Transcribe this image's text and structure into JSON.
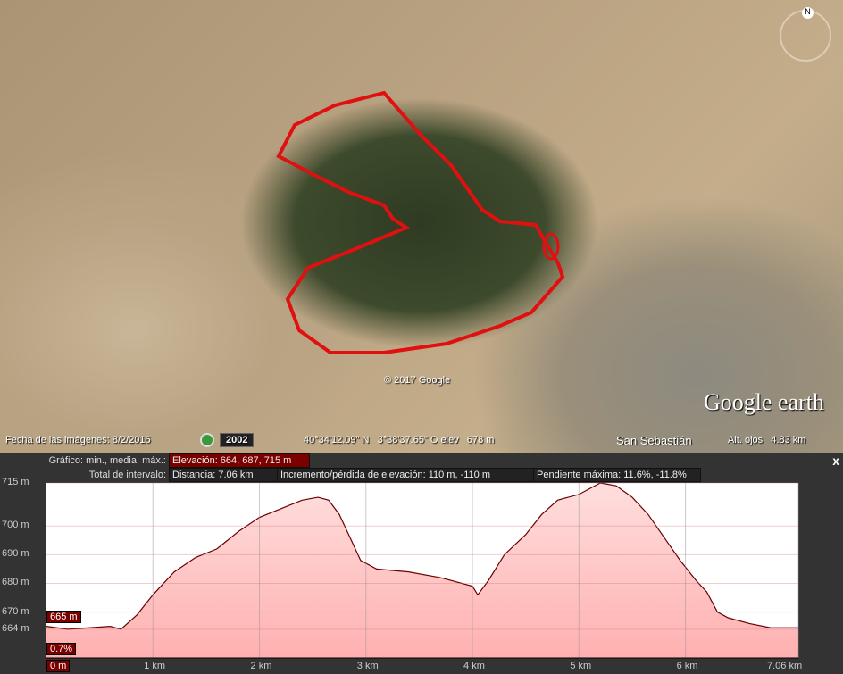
{
  "map": {
    "copyright": "© 2017 Google",
    "logo": "Google earth",
    "compass": "N",
    "place_label": "San Sebastián"
  },
  "status": {
    "imagery_date": "Fecha de las imágenes: 8/2/2016",
    "historical_year": "2002",
    "coords": "40°34'12.09\" N   3°38'37.65\" O elev   678 m",
    "eye_alt": "Alt. ojos   4.83 km"
  },
  "profile": {
    "summary_label": "Gráfico: min., media, máx.:",
    "elevation": "Elevación: 664, 687, 715 m",
    "range_label": "Total de intervalo:",
    "distance": "Distancia: 7.06 km",
    "gain_loss": "Incremento/pérdida de elevación: 110 m, -110 m",
    "max_slope": "Pendiente máxima: 11.6%, -11.8%",
    "cursor_elev": "665 m",
    "cursor_slope": "0.7%",
    "cursor_dist": "0 m",
    "close": "x"
  },
  "chart_data": {
    "type": "area",
    "xlim": [
      0,
      7.06
    ],
    "ylim": [
      654,
      715
    ],
    "y_ticks": [
      {
        "v": 715,
        "l": "715 m"
      },
      {
        "v": 700,
        "l": "700 m"
      },
      {
        "v": 690,
        "l": "690 m"
      },
      {
        "v": 680,
        "l": "680 m"
      },
      {
        "v": 670,
        "l": "670 m"
      },
      {
        "v": 664,
        "l": "664 m"
      }
    ],
    "x_ticks": [
      {
        "v": 1,
        "l": "1 km"
      },
      {
        "v": 2,
        "l": "2 km"
      },
      {
        "v": 3,
        "l": "3 km"
      },
      {
        "v": 4,
        "l": "4 km"
      },
      {
        "v": 5,
        "l": "5 km"
      },
      {
        "v": 6,
        "l": "6 km"
      },
      {
        "v": 7.06,
        "l": "7.06 km"
      }
    ],
    "points": [
      [
        0,
        665
      ],
      [
        0.2,
        664
      ],
      [
        0.4,
        664.5
      ],
      [
        0.6,
        665
      ],
      [
        0.7,
        664
      ],
      [
        0.85,
        669
      ],
      [
        1.0,
        676
      ],
      [
        1.2,
        684
      ],
      [
        1.4,
        689
      ],
      [
        1.6,
        692
      ],
      [
        1.8,
        698
      ],
      [
        2.0,
        703
      ],
      [
        2.2,
        706
      ],
      [
        2.4,
        709
      ],
      [
        2.55,
        710
      ],
      [
        2.65,
        709
      ],
      [
        2.75,
        704
      ],
      [
        2.85,
        696
      ],
      [
        2.95,
        688
      ],
      [
        3.1,
        685
      ],
      [
        3.4,
        684
      ],
      [
        3.7,
        682
      ],
      [
        4.0,
        679
      ],
      [
        4.05,
        676
      ],
      [
        4.15,
        681
      ],
      [
        4.3,
        690
      ],
      [
        4.5,
        697
      ],
      [
        4.65,
        704
      ],
      [
        4.8,
        709
      ],
      [
        5.0,
        711
      ],
      [
        5.2,
        715
      ],
      [
        5.35,
        714
      ],
      [
        5.5,
        710
      ],
      [
        5.65,
        704
      ],
      [
        5.8,
        696
      ],
      [
        5.95,
        688
      ],
      [
        6.1,
        681
      ],
      [
        6.2,
        677
      ],
      [
        6.3,
        670
      ],
      [
        6.4,
        668
      ],
      [
        6.6,
        666
      ],
      [
        6.8,
        664.5
      ],
      [
        7.06,
        664.5
      ]
    ]
  }
}
